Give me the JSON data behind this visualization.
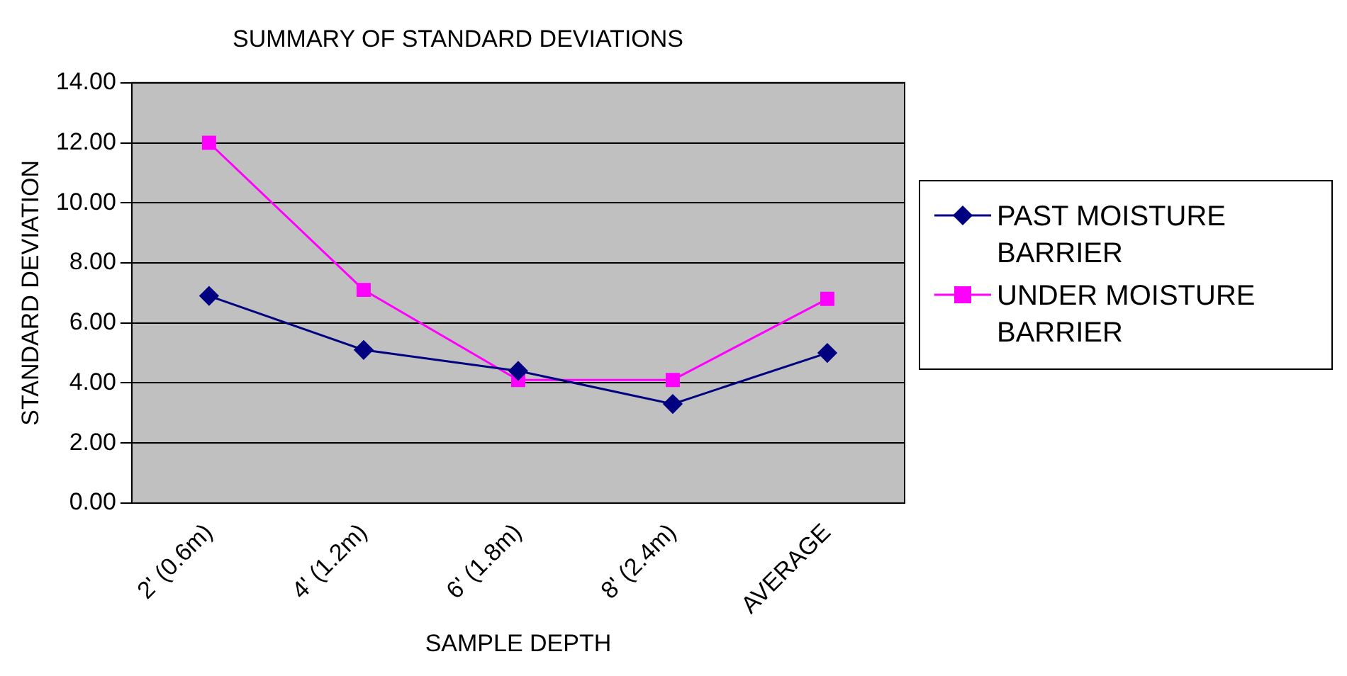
{
  "chart_data": {
    "type": "line",
    "title": "SUMMARY OF STANDARD DEVIATIONS",
    "xlabel": "SAMPLE DEPTH",
    "ylabel": "STANDARD DEVIATION",
    "categories": [
      "2' (0.6m)",
      "4' (1.2m)",
      "6' (1.8m)",
      "8' (2.4m)",
      "AVERAGE"
    ],
    "series": [
      {
        "name": "PAST MOISTURE BARRIER",
        "color": "#000080",
        "marker": "diamond",
        "values": [
          6.9,
          5.1,
          4.4,
          3.3,
          5.0
        ]
      },
      {
        "name": "UNDER MOISTURE BARRIER",
        "color": "#ff00ff",
        "marker": "square",
        "values": [
          12.0,
          7.1,
          4.1,
          4.1,
          6.8
        ]
      }
    ],
    "ylim": [
      0,
      14
    ],
    "yticks": [
      {
        "value": 0,
        "label": "0.00"
      },
      {
        "value": 2,
        "label": "2.00"
      },
      {
        "value": 4,
        "label": "4.00"
      },
      {
        "value": 6,
        "label": "6.00"
      },
      {
        "value": 8,
        "label": "8.00"
      },
      {
        "value": 10,
        "label": "10.00"
      },
      {
        "value": 12,
        "label": "12.00"
      },
      {
        "value": 14,
        "label": "14.00"
      }
    ],
    "grid": "y",
    "legend": "right"
  }
}
